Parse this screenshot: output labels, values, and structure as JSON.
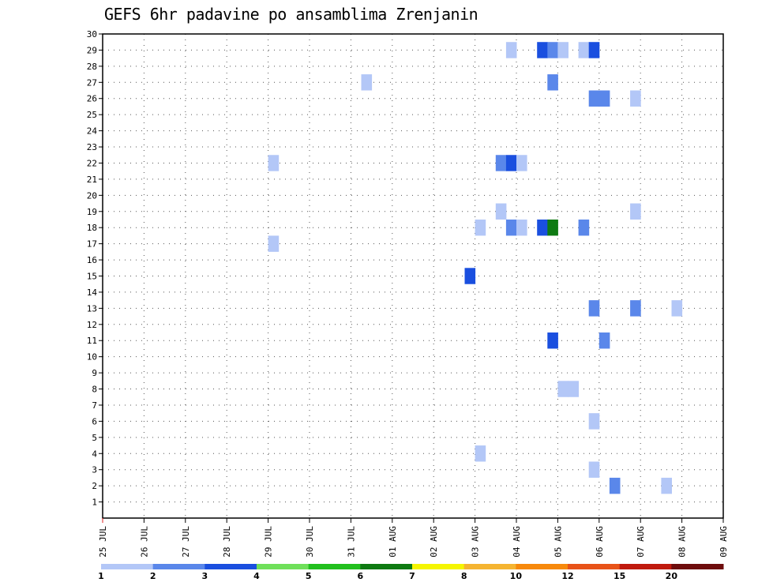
{
  "title": "GEFS 6hr padavine po ansamblima Zrenjanin",
  "chart_data": {
    "type": "heatmap",
    "title": "GEFS 6hr padavine po ansamblima Zrenjanin",
    "xlabel": "",
    "ylabel": "",
    "x_ticks": [
      "25 JUL",
      "26 JUL",
      "27 JUL",
      "28 JUL",
      "29 JUL",
      "30 JUL",
      "31 JUL",
      "01 AUG",
      "02 AUG",
      "03 AUG",
      "04 AUG",
      "05 AUG",
      "06 AUG",
      "07 AUG",
      "08 AUG",
      "09 AUG"
    ],
    "y_ticks": [
      1,
      2,
      3,
      4,
      5,
      6,
      7,
      8,
      9,
      10,
      11,
      12,
      13,
      14,
      15,
      16,
      17,
      18,
      19,
      20,
      21,
      22,
      23,
      24,
      25,
      26,
      27,
      28,
      29,
      30
    ],
    "xlim_days": [
      0,
      15
    ],
    "ylim": [
      0,
      30
    ],
    "grid": true,
    "colorbar": {
      "boundaries": [
        "1",
        "2",
        "3",
        "4",
        "5",
        "6",
        "7",
        "8",
        "10",
        "12",
        "15",
        "20"
      ],
      "colors": [
        "#b3c7f7",
        "#5a87ea",
        "#1a4fdf",
        "#6fe05a",
        "#22c01e",
        "#0e7a12",
        "#f5f500",
        "#f5b431",
        "#f7890c",
        "#e85318",
        "#c01a0e",
        "#6e0d0d"
      ]
    },
    "cells": [
      {
        "member": 29,
        "day": 9.75,
        "value": 1.5
      },
      {
        "member": 29,
        "day": 10.5,
        "value": 3.5
      },
      {
        "member": 29,
        "day": 10.75,
        "value": 2.5
      },
      {
        "member": 29,
        "day": 11.0,
        "value": 1.5
      },
      {
        "member": 29,
        "day": 11.5,
        "value": 1.5
      },
      {
        "member": 29,
        "day": 11.75,
        "value": 3.5
      },
      {
        "member": 27,
        "day": 6.25,
        "value": 1.5
      },
      {
        "member": 27,
        "day": 10.75,
        "value": 2.5
      },
      {
        "member": 26,
        "day": 11.75,
        "value": 2.5
      },
      {
        "member": 26,
        "day": 12.0,
        "value": 2.5
      },
      {
        "member": 26,
        "day": 12.75,
        "value": 1.5
      },
      {
        "member": 22,
        "day": 4.0,
        "value": 1.5
      },
      {
        "member": 22,
        "day": 9.5,
        "value": 2.5
      },
      {
        "member": 22,
        "day": 9.75,
        "value": 3.5
      },
      {
        "member": 22,
        "day": 10.0,
        "value": 1.5
      },
      {
        "member": 19,
        "day": 9.5,
        "value": 1.5
      },
      {
        "member": 19,
        "day": 12.75,
        "value": 1.5
      },
      {
        "member": 18,
        "day": 9.0,
        "value": 1.5
      },
      {
        "member": 18,
        "day": 9.75,
        "value": 2.5
      },
      {
        "member": 18,
        "day": 10.0,
        "value": 1.5
      },
      {
        "member": 18,
        "day": 10.5,
        "value": 3.5
      },
      {
        "member": 18,
        "day": 10.75,
        "value": 6.5
      },
      {
        "member": 18,
        "day": 11.5,
        "value": 2.5
      },
      {
        "member": 17,
        "day": 4.0,
        "value": 1.5
      },
      {
        "member": 15,
        "day": 8.75,
        "value": 3.0
      },
      {
        "member": 13,
        "day": 11.75,
        "value": 2.5
      },
      {
        "member": 13,
        "day": 12.75,
        "value": 2.5
      },
      {
        "member": 13,
        "day": 13.75,
        "value": 1.5
      },
      {
        "member": 11,
        "day": 10.75,
        "value": 3.5
      },
      {
        "member": 11,
        "day": 12.0,
        "value": 2.5
      },
      {
        "member": 8,
        "day": 11.0,
        "value": 1.5
      },
      {
        "member": 8,
        "day": 11.25,
        "value": 1.5
      },
      {
        "member": 6,
        "day": 11.75,
        "value": 1.5
      },
      {
        "member": 4,
        "day": 9.0,
        "value": 1.5
      },
      {
        "member": 3,
        "day": 11.75,
        "value": 1.5
      },
      {
        "member": 2,
        "day": 12.25,
        "value": 2.5
      },
      {
        "member": 2,
        "day": 13.5,
        "value": 1.5
      }
    ]
  }
}
